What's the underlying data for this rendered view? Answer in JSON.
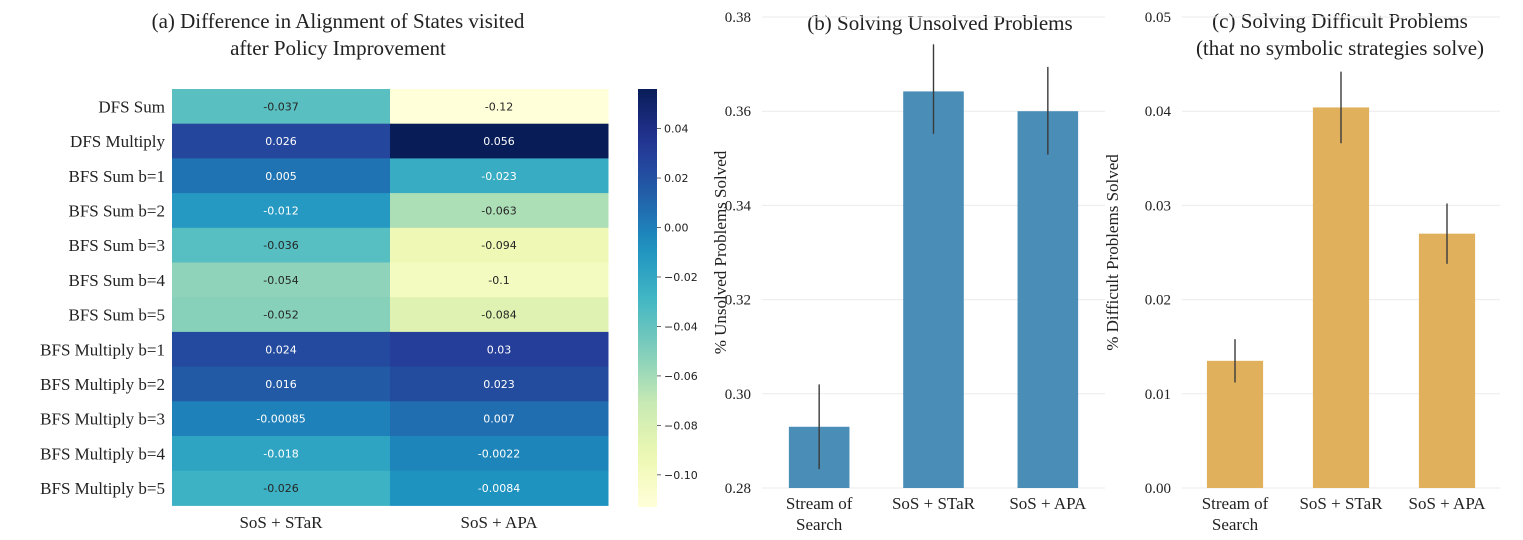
{
  "chart_data": [
    {
      "type": "heatmap",
      "title": "(a) Difference in Alignment of States visited",
      "subtitle": "after Policy Improvement",
      "rows": [
        "DFS Sum",
        "DFS Multiply",
        "BFS Sum b=1",
        "BFS Sum b=2",
        "BFS Sum b=3",
        "BFS Sum b=4",
        "BFS Sum b=5",
        "BFS Multiply b=1",
        "BFS Multiply b=2",
        "BFS Multiply b=3",
        "BFS Multiply b=4",
        "BFS Multiply b=5"
      ],
      "columns": [
        "SoS + STaR",
        "SoS + APA"
      ],
      "values": [
        [
          -0.037,
          -0.12
        ],
        [
          0.026,
          0.056
        ],
        [
          0.005,
          -0.023
        ],
        [
          -0.012,
          -0.063
        ],
        [
          -0.036,
          -0.094
        ],
        [
          -0.054,
          -0.1
        ],
        [
          -0.052,
          -0.084
        ],
        [
          0.024,
          0.03
        ],
        [
          0.016,
          0.023
        ],
        [
          -0.00085,
          0.007
        ],
        [
          -0.018,
          -0.0022
        ],
        [
          -0.026,
          -0.0084
        ]
      ],
      "value_labels": [
        [
          "-0.037",
          "-0.12"
        ],
        [
          "0.026",
          "0.056"
        ],
        [
          "0.005",
          "-0.023"
        ],
        [
          "-0.012",
          "-0.063"
        ],
        [
          "-0.036",
          "-0.094"
        ],
        [
          "-0.054",
          "-0.1"
        ],
        [
          "-0.052",
          "-0.084"
        ],
        [
          "0.024",
          "0.03"
        ],
        [
          "0.016",
          "0.023"
        ],
        [
          "-0.00085",
          "0.007"
        ],
        [
          "-0.018",
          "-0.0022"
        ],
        [
          "-0.026",
          "-0.0084"
        ]
      ],
      "colorbar": {
        "colormap": "YlGnBu",
        "range": [
          -0.113,
          0.056
        ],
        "ticks": [
          0.04,
          0.02,
          0.0,
          -0.02,
          -0.04,
          -0.06,
          -0.08,
          -0.1
        ],
        "tick_labels": [
          "0.04",
          "0.02",
          "0.00",
          "−0.02",
          "−0.04",
          "−0.06",
          "−0.08",
          "−0.10"
        ]
      }
    },
    {
      "type": "bar",
      "title": "(b) Solving Unsolved Problems",
      "categories": [
        "Stream of Search",
        "SoS + STaR",
        "SoS + APA"
      ],
      "category_lines": [
        [
          "Stream of",
          "Search"
        ],
        [
          "SoS + STaR"
        ],
        [
          "SoS + APA"
        ]
      ],
      "values": [
        0.293,
        0.3642,
        0.36
      ],
      "error_low": [
        0.284,
        0.3552,
        0.3508
      ],
      "error_high": [
        0.302,
        0.3742,
        0.3694
      ],
      "ylabel": "% Unsolved Problems Solved",
      "ylim": [
        0.28,
        0.38
      ],
      "yticks": [
        0.28,
        0.3,
        0.32,
        0.34,
        0.36,
        0.38
      ],
      "ytick_labels": [
        "0.28",
        "0.30",
        "0.32",
        "0.34",
        "0.36",
        "0.38"
      ],
      "color": "#4a8db7",
      "grid": true
    },
    {
      "type": "bar",
      "title": "(c) Solving Difficult Problems",
      "subtitle": "(that no symbolic strategies solve)",
      "categories": [
        "Stream of Search",
        "SoS + STaR",
        "SoS + APA"
      ],
      "category_lines": [
        [
          "Stream of",
          "Search"
        ],
        [
          "SoS + STaR"
        ],
        [
          "SoS + APA"
        ]
      ],
      "values": [
        0.0135,
        0.0404,
        0.027
      ],
      "error_low": [
        0.0112,
        0.0366,
        0.0238
      ],
      "error_high": [
        0.0158,
        0.0442,
        0.0302
      ],
      "ylabel": "% Difficult Problems Solved",
      "ylim": [
        0.0,
        0.05
      ],
      "yticks": [
        0.0,
        0.01,
        0.02,
        0.03,
        0.04,
        0.05
      ],
      "ytick_labels": [
        "0.00",
        "0.01",
        "0.02",
        "0.03",
        "0.04",
        "0.05"
      ],
      "color": "#e0b05c",
      "grid": true
    }
  ]
}
